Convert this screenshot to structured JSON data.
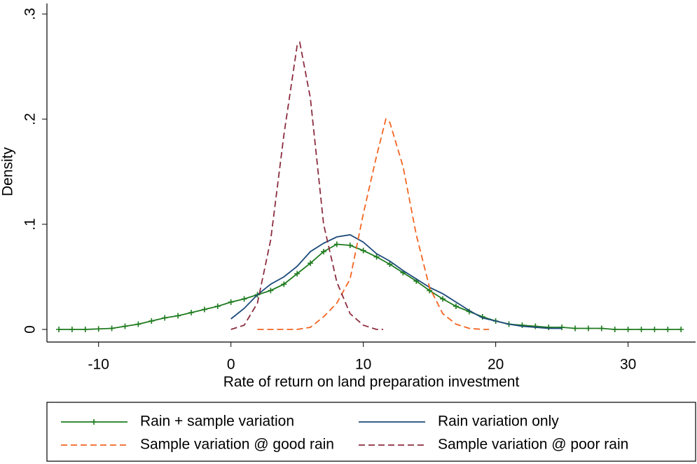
{
  "chart_data": {
    "type": "line",
    "x_label": "Rate of return on land preparation investment",
    "y_label": "Density",
    "xlim": [
      -13.9,
      35.1
    ],
    "ylim": [
      -0.012,
      0.31
    ],
    "xticks": [
      -10,
      0,
      10,
      20,
      30
    ],
    "yticks": [
      0,
      {
        "value": 0.1,
        "label": ".1"
      },
      {
        "value": 0.2,
        "label": ".2"
      },
      {
        "value": 0.3,
        "label": ".3"
      }
    ],
    "series": [
      {
        "name": "Rain + sample variation",
        "color": "#1e7b1e",
        "style": "solid",
        "marker": "+",
        "x": [
          -13,
          -12,
          -11,
          -10,
          -9,
          -8,
          -7,
          -6,
          -5,
          -4,
          -3,
          -2,
          -1,
          0,
          1,
          2,
          3,
          4,
          5,
          6,
          7,
          8,
          9,
          10,
          11,
          12,
          13,
          14,
          15,
          16,
          17,
          18,
          19,
          20,
          21,
          22,
          23,
          24,
          25,
          26,
          27,
          28,
          29,
          30,
          31,
          32,
          33,
          34
        ],
        "values": [
          0,
          0,
          0,
          0.0005,
          0.001,
          0.003,
          0.005,
          0.008,
          0.011,
          0.013,
          0.016,
          0.019,
          0.022,
          0.026,
          0.029,
          0.033,
          0.037,
          0.043,
          0.053,
          0.063,
          0.074,
          0.081,
          0.08,
          0.075,
          0.069,
          0.062,
          0.054,
          0.046,
          0.037,
          0.029,
          0.022,
          0.017,
          0.012,
          0.008,
          0.005,
          0.004,
          0.003,
          0.002,
          0.002,
          0.001,
          0.001,
          0.001,
          0,
          0,
          0,
          0,
          0,
          0
        ]
      },
      {
        "name": "Rain variation only",
        "color": "#1c4a7a",
        "style": "solid",
        "x": [
          0,
          1,
          2,
          3,
          4,
          5,
          6,
          7,
          8,
          9,
          10,
          11,
          12,
          13,
          14,
          15,
          16,
          17,
          18,
          19,
          20,
          21,
          22,
          23,
          24,
          25
        ],
        "values": [
          0.01,
          0.02,
          0.033,
          0.043,
          0.05,
          0.06,
          0.074,
          0.082,
          0.088,
          0.09,
          0.083,
          0.072,
          0.065,
          0.056,
          0.048,
          0.04,
          0.034,
          0.026,
          0.018,
          0.011,
          0.008,
          0.005,
          0.003,
          0.002,
          0.001,
          0.001
        ]
      },
      {
        "name": "Sample variation @ good rain",
        "color": "#f26522",
        "style": "dashed",
        "x": [
          2,
          3,
          4,
          5,
          6,
          7,
          8,
          9,
          10,
          11,
          11.7,
          12,
          13,
          14,
          15,
          16,
          17,
          18,
          19,
          19.5
        ],
        "values": [
          0,
          0,
          0,
          0,
          0.002,
          0.012,
          0.025,
          0.048,
          0.11,
          0.165,
          0.2,
          0.197,
          0.155,
          0.09,
          0.04,
          0.015,
          0.005,
          0.001,
          0,
          0
        ]
      },
      {
        "name": "Sample variation @ poor rain",
        "color": "#8b2d3f",
        "style": "dashed",
        "x": [
          0,
          1,
          2,
          3,
          4,
          5,
          5.2,
          6,
          7,
          8,
          9,
          10,
          11,
          11.5
        ],
        "values": [
          0,
          0.004,
          0.025,
          0.085,
          0.185,
          0.27,
          0.273,
          0.22,
          0.1,
          0.045,
          0.015,
          0.004,
          0,
          0
        ]
      }
    ]
  }
}
